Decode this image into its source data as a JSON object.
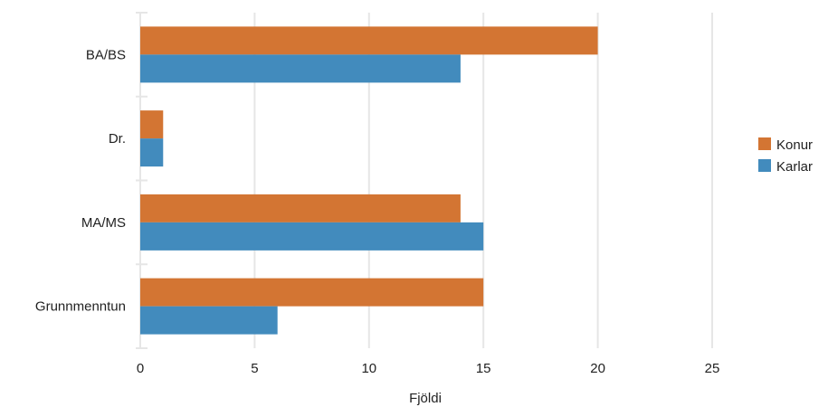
{
  "chart_data": {
    "type": "bar",
    "orientation": "horizontal",
    "categories": [
      "BA/BS",
      "Dr.",
      "MA/MS",
      "Grunnmenntun"
    ],
    "series": [
      {
        "name": "Konur",
        "color": "#D37533",
        "values": [
          20,
          1,
          14,
          15
        ]
      },
      {
        "name": "Karlar",
        "color": "#428BBD",
        "values": [
          14,
          1,
          15,
          6
        ]
      }
    ],
    "xlabel": "Fjöldi",
    "ylabel": "",
    "xlim": [
      0,
      25
    ],
    "xticks": [
      0,
      5,
      10,
      15,
      20,
      25
    ],
    "grid": true,
    "legend_position": "right"
  }
}
